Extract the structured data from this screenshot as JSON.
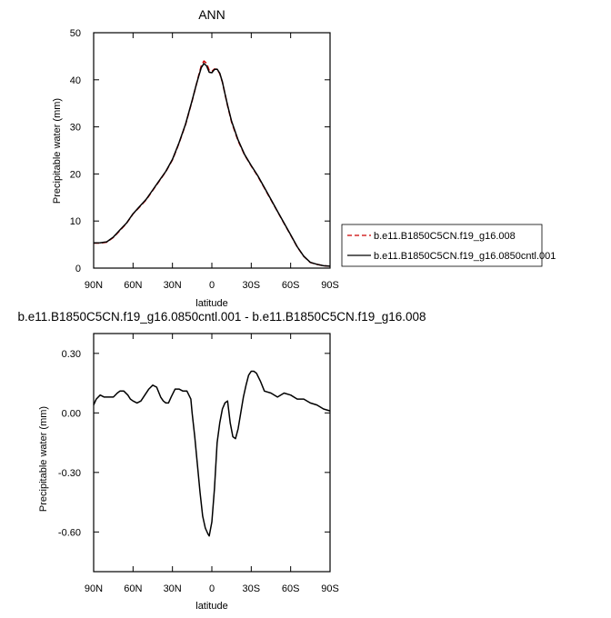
{
  "chart_data": [
    {
      "type": "line",
      "title": "ANN",
      "xlabel": "latitude",
      "ylabel": "Precipitable water (mm)",
      "xlim": [
        90,
        -90
      ],
      "ylim": [
        0,
        50
      ],
      "xticks": [
        90,
        60,
        30,
        0,
        -30,
        -60,
        -90
      ],
      "xtick_labels": [
        "90N",
        "60N",
        "30N",
        "0",
        "30S",
        "60S",
        "90S"
      ],
      "yticks": [
        0,
        10,
        20,
        30,
        40,
        50
      ],
      "ytick_labels": [
        "0",
        "10",
        "20",
        "30",
        "40",
        "50"
      ],
      "legend_position": "right",
      "series": [
        {
          "name": "b.e11.B1850C5CN.f19_g16.008",
          "color": "#cc0000",
          "dash": "dashed",
          "x": [
            90,
            85,
            80,
            75,
            70,
            65,
            60,
            55,
            50,
            45,
            40,
            35,
            30,
            25,
            20,
            15,
            12,
            10,
            8,
            6,
            4,
            2,
            0,
            -2,
            -4,
            -6,
            -8,
            -10,
            -12,
            -15,
            -20,
            -25,
            -30,
            -35,
            -40,
            -45,
            -50,
            -55,
            -60,
            -65,
            -70,
            -75,
            -80,
            -85,
            -90
          ],
          "y": [
            5.3,
            5.3,
            5.5,
            6.5,
            8.0,
            9.5,
            11.5,
            13.0,
            14.5,
            16.5,
            18.5,
            20.5,
            23.0,
            26.5,
            30.5,
            35.5,
            38.8,
            41.0,
            43.0,
            44.0,
            43.5,
            42.0,
            41.8,
            42.3,
            42.2,
            41.3,
            39.5,
            37.0,
            34.5,
            31.0,
            27.0,
            24.0,
            21.7,
            19.5,
            17.0,
            14.5,
            12.0,
            9.5,
            7.0,
            4.5,
            2.5,
            1.2,
            0.8,
            0.5,
            0.4
          ]
        },
        {
          "name": "b.e11.B1850C5CN.f19_g16.0850cntl.001",
          "color": "#000000",
          "dash": "solid",
          "x": [
            90,
            85,
            80,
            75,
            70,
            65,
            60,
            55,
            50,
            45,
            40,
            35,
            30,
            25,
            20,
            15,
            12,
            10,
            8,
            6,
            4,
            2,
            0,
            -2,
            -4,
            -6,
            -8,
            -10,
            -12,
            -15,
            -20,
            -25,
            -30,
            -35,
            -40,
            -45,
            -50,
            -55,
            -60,
            -65,
            -70,
            -75,
            -80,
            -85,
            -90
          ],
          "y": [
            5.35,
            5.38,
            5.58,
            6.6,
            8.1,
            9.55,
            11.55,
            13.1,
            14.62,
            16.6,
            18.6,
            20.56,
            23.1,
            26.62,
            30.6,
            35.6,
            38.85,
            40.8,
            42.6,
            43.45,
            42.95,
            41.6,
            41.5,
            42.2,
            42.25,
            41.4,
            39.55,
            37.06,
            34.6,
            31.2,
            27.2,
            24.1,
            21.8,
            19.6,
            17.1,
            14.6,
            12.07,
            9.57,
            7.07,
            4.53,
            2.52,
            1.21,
            0.81,
            0.51,
            0.41
          ]
        }
      ]
    },
    {
      "type": "line",
      "title": "b.e11.B1850C5CN.f19_g16.0850cntl.001 - b.e11.B1850C5CN.f19_g16.008",
      "xlabel": "latitude",
      "ylabel": "Precipitable water (mm)",
      "xlim": [
        90,
        -90
      ],
      "ylim": [
        -0.8,
        0.4
      ],
      "xticks": [
        90,
        60,
        30,
        0,
        -30,
        -60,
        -90
      ],
      "xtick_labels": [
        "90N",
        "60N",
        "30N",
        "0",
        "30S",
        "60S",
        "90S"
      ],
      "yticks": [
        0.3,
        0.0,
        -0.3,
        -0.6
      ],
      "ytick_labels": [
        "0.30",
        "0.00",
        "-0.30",
        "-0.60"
      ],
      "series": [
        {
          "color": "#000000",
          "dash": "solid",
          "x": [
            90,
            88,
            85,
            82,
            78,
            75,
            72,
            70,
            67,
            64,
            62,
            60,
            57,
            54,
            51,
            48,
            45,
            42,
            39,
            37,
            35,
            33,
            31,
            28,
            25,
            22,
            19,
            16,
            15,
            13,
            11,
            9,
            7,
            5,
            3,
            2,
            0,
            -2,
            -4,
            -6,
            -8,
            -10,
            -12,
            -14,
            -16,
            -18,
            -20,
            -22,
            -24,
            -26,
            -28,
            -30,
            -32,
            -34,
            -37,
            -40,
            -45,
            -50,
            -55,
            -60,
            -65,
            -70,
            -75,
            -80,
            -85,
            -90
          ],
          "y": [
            0.04,
            0.07,
            0.09,
            0.08,
            0.08,
            0.08,
            0.1,
            0.11,
            0.11,
            0.09,
            0.07,
            0.06,
            0.05,
            0.06,
            0.09,
            0.12,
            0.14,
            0.13,
            0.08,
            0.06,
            0.05,
            0.05,
            0.08,
            0.12,
            0.12,
            0.11,
            0.11,
            0.07,
            0.0,
            -0.12,
            -0.26,
            -0.4,
            -0.52,
            -0.58,
            -0.61,
            -0.62,
            -0.55,
            -0.38,
            -0.15,
            -0.05,
            0.02,
            0.05,
            0.06,
            -0.05,
            -0.12,
            -0.13,
            -0.08,
            0.0,
            0.08,
            0.14,
            0.19,
            0.21,
            0.21,
            0.2,
            0.16,
            0.11,
            0.1,
            0.08,
            0.1,
            0.09,
            0.07,
            0.07,
            0.05,
            0.04,
            0.02,
            0.01
          ]
        }
      ]
    }
  ]
}
